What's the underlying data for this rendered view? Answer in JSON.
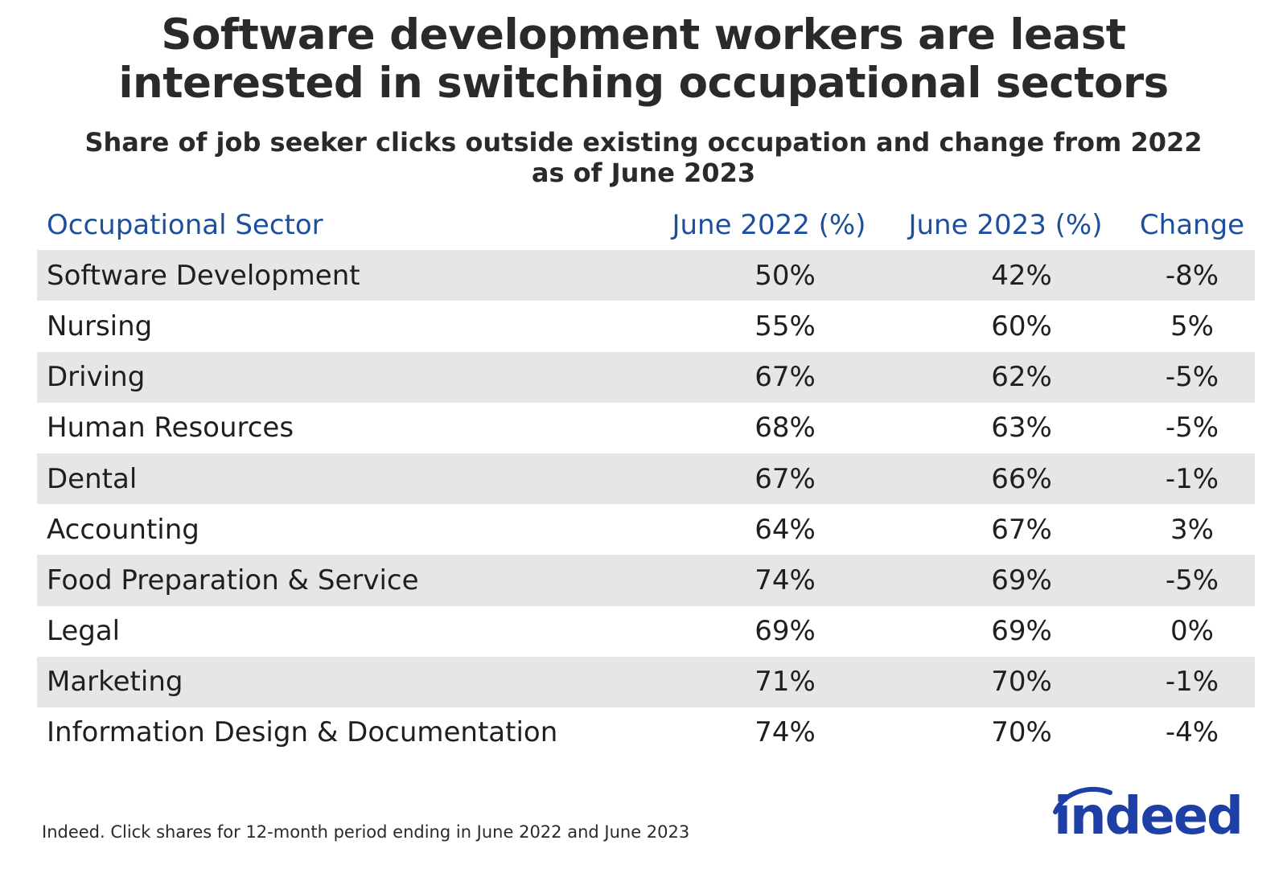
{
  "chart_data": {
    "type": "table",
    "title": "Software development workers are least interested in switching occupational sectors",
    "title_lines": [
      "Software development workers are least",
      "interested in switching occupational sectors"
    ],
    "subtitle": "Share of job seeker clicks outside existing occupation and change from 2022 as of June 2023",
    "subtitle_lines": [
      "Share of job seeker clicks outside existing occupation and change from 2022",
      "as of June 2023"
    ],
    "columns": [
      "Occupational Sector",
      "June 2022 (%)",
      "June 2023 (%)",
      "Change"
    ],
    "rows": [
      {
        "sector": "Software Development",
        "june_2022": "50%",
        "june_2023": "42%",
        "change": "-8%"
      },
      {
        "sector": "Nursing",
        "june_2022": "55%",
        "june_2023": "60%",
        "change": "5%"
      },
      {
        "sector": "Driving",
        "june_2022": "67%",
        "june_2023": "62%",
        "change": "-5%"
      },
      {
        "sector": "Human Resources",
        "june_2022": "68%",
        "june_2023": "63%",
        "change": "-5%"
      },
      {
        "sector": "Dental",
        "june_2022": "67%",
        "june_2023": "66%",
        "change": "-1%"
      },
      {
        "sector": "Accounting",
        "june_2022": "64%",
        "june_2023": "67%",
        "change": "3%"
      },
      {
        "sector": "Food Preparation & Service",
        "june_2022": "74%",
        "june_2023": "69%",
        "change": "-5%"
      },
      {
        "sector": "Legal",
        "june_2022": "69%",
        "june_2023": "69%",
        "change": "0%"
      },
      {
        "sector": "Marketing",
        "june_2022": "71%",
        "june_2023": "70%",
        "change": "-1%"
      },
      {
        "sector": "Information Design & Documentation",
        "june_2022": "74%",
        "june_2023": "70%",
        "change": "-4%"
      }
    ],
    "source": "Indeed. Click shares for 12-month period ending in June 2022 and June 2023"
  },
  "logo": {
    "text": "indeed",
    "icon": "indeed-arc-icon"
  },
  "colors": {
    "header_text": "#1d4f9c",
    "row_shade": "#e6e6e6",
    "logo_blue": "#1d3fa6"
  }
}
